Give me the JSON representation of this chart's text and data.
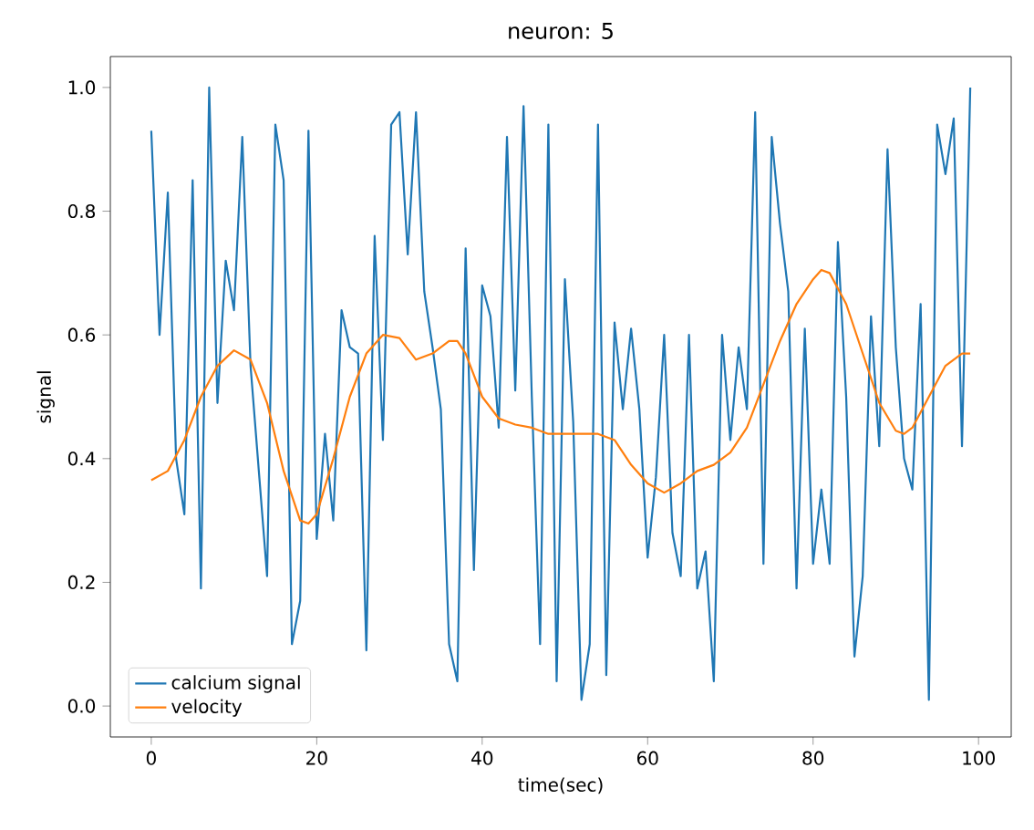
{
  "chart_data": {
    "type": "line",
    "title": "neuron: 5",
    "xlabel": "time(sec)",
    "ylabel": "signal",
    "xlim": [
      -4.95,
      103.95
    ],
    "ylim": [
      -0.05,
      1.05
    ],
    "xticks": [
      0,
      20,
      40,
      60,
      80,
      100
    ],
    "yticks": [
      {
        "value": 0,
        "label": "0.0"
      },
      {
        "value": 0.2,
        "label": "0.2"
      },
      {
        "value": 0.4,
        "label": "0.4"
      },
      {
        "value": 0.6,
        "label": "0.6"
      },
      {
        "value": 0.8,
        "label": "0.8"
      },
      {
        "value": 1,
        "label": "1.0"
      }
    ],
    "legend": "bottom left",
    "grid": false,
    "series": [
      {
        "name": "calcium signal",
        "color": "#1f77b4",
        "x": [
          0,
          1,
          2,
          3,
          4,
          5,
          6,
          7,
          8,
          9,
          10,
          11,
          12,
          13,
          14,
          15,
          16,
          17,
          18,
          19,
          20,
          21,
          22,
          23,
          24,
          25,
          26,
          27,
          28,
          29,
          30,
          31,
          32,
          33,
          34,
          35,
          36,
          37,
          38,
          39,
          40,
          41,
          42,
          43,
          44,
          45,
          46,
          47,
          48,
          49,
          50,
          51,
          52,
          53,
          54,
          55,
          56,
          57,
          58,
          59,
          60,
          61,
          62,
          63,
          64,
          65,
          66,
          67,
          68,
          69,
          70,
          71,
          72,
          73,
          74,
          75,
          76,
          77,
          78,
          79,
          80,
          81,
          82,
          83,
          84,
          85,
          86,
          87,
          88,
          89,
          90,
          91,
          92,
          93,
          94,
          95,
          96,
          97,
          98,
          99
        ],
        "values": [
          0.93,
          0.6,
          0.83,
          0.4,
          0.31,
          0.85,
          0.19,
          1.0,
          0.49,
          0.72,
          0.64,
          0.92,
          0.55,
          0.38,
          0.21,
          0.94,
          0.85,
          0.1,
          0.17,
          0.93,
          0.27,
          0.44,
          0.3,
          0.64,
          0.58,
          0.57,
          0.09,
          0.76,
          0.43,
          0.94,
          0.96,
          0.73,
          0.96,
          0.67,
          0.58,
          0.48,
          0.1,
          0.04,
          0.74,
          0.22,
          0.68,
          0.63,
          0.45,
          0.92,
          0.51,
          0.97,
          0.5,
          0.1,
          0.94,
          0.04,
          0.69,
          0.46,
          0.01,
          0.1,
          0.94,
          0.05,
          0.62,
          0.48,
          0.61,
          0.48,
          0.24,
          0.37,
          0.6,
          0.28,
          0.21,
          0.6,
          0.19,
          0.25,
          0.04,
          0.6,
          0.43,
          0.58,
          0.48,
          0.96,
          0.23,
          0.92,
          0.78,
          0.67,
          0.19,
          0.61,
          0.23,
          0.35,
          0.23,
          0.75,
          0.5,
          0.08,
          0.21,
          0.63,
          0.42,
          0.9,
          0.58,
          0.4,
          0.35,
          0.65,
          0.01,
          0.94,
          0.86,
          0.95,
          0.42,
          1.0
        ]
      },
      {
        "name": "velocity",
        "color": "#ff7f0e",
        "x": [
          0,
          2,
          4,
          6,
          8,
          10,
          12,
          14,
          16,
          18,
          19,
          20,
          22,
          24,
          26,
          28,
          30,
          32,
          34,
          36,
          37,
          38,
          40,
          42,
          44,
          46,
          48,
          50,
          52,
          54,
          56,
          58,
          60,
          62,
          64,
          66,
          68,
          70,
          72,
          74,
          76,
          78,
          80,
          81,
          82,
          84,
          86,
          88,
          90,
          91,
          92,
          94,
          96,
          98,
          99
        ],
        "values": [
          0.365,
          0.38,
          0.43,
          0.5,
          0.55,
          0.575,
          0.56,
          0.49,
          0.38,
          0.3,
          0.295,
          0.31,
          0.4,
          0.5,
          0.57,
          0.6,
          0.595,
          0.56,
          0.57,
          0.59,
          0.59,
          0.57,
          0.5,
          0.465,
          0.455,
          0.45,
          0.44,
          0.44,
          0.44,
          0.44,
          0.43,
          0.39,
          0.36,
          0.345,
          0.36,
          0.38,
          0.39,
          0.41,
          0.45,
          0.52,
          0.59,
          0.65,
          0.69,
          0.705,
          0.7,
          0.65,
          0.57,
          0.49,
          0.445,
          0.44,
          0.45,
          0.5,
          0.55,
          0.57,
          0.57
        ]
      }
    ]
  }
}
